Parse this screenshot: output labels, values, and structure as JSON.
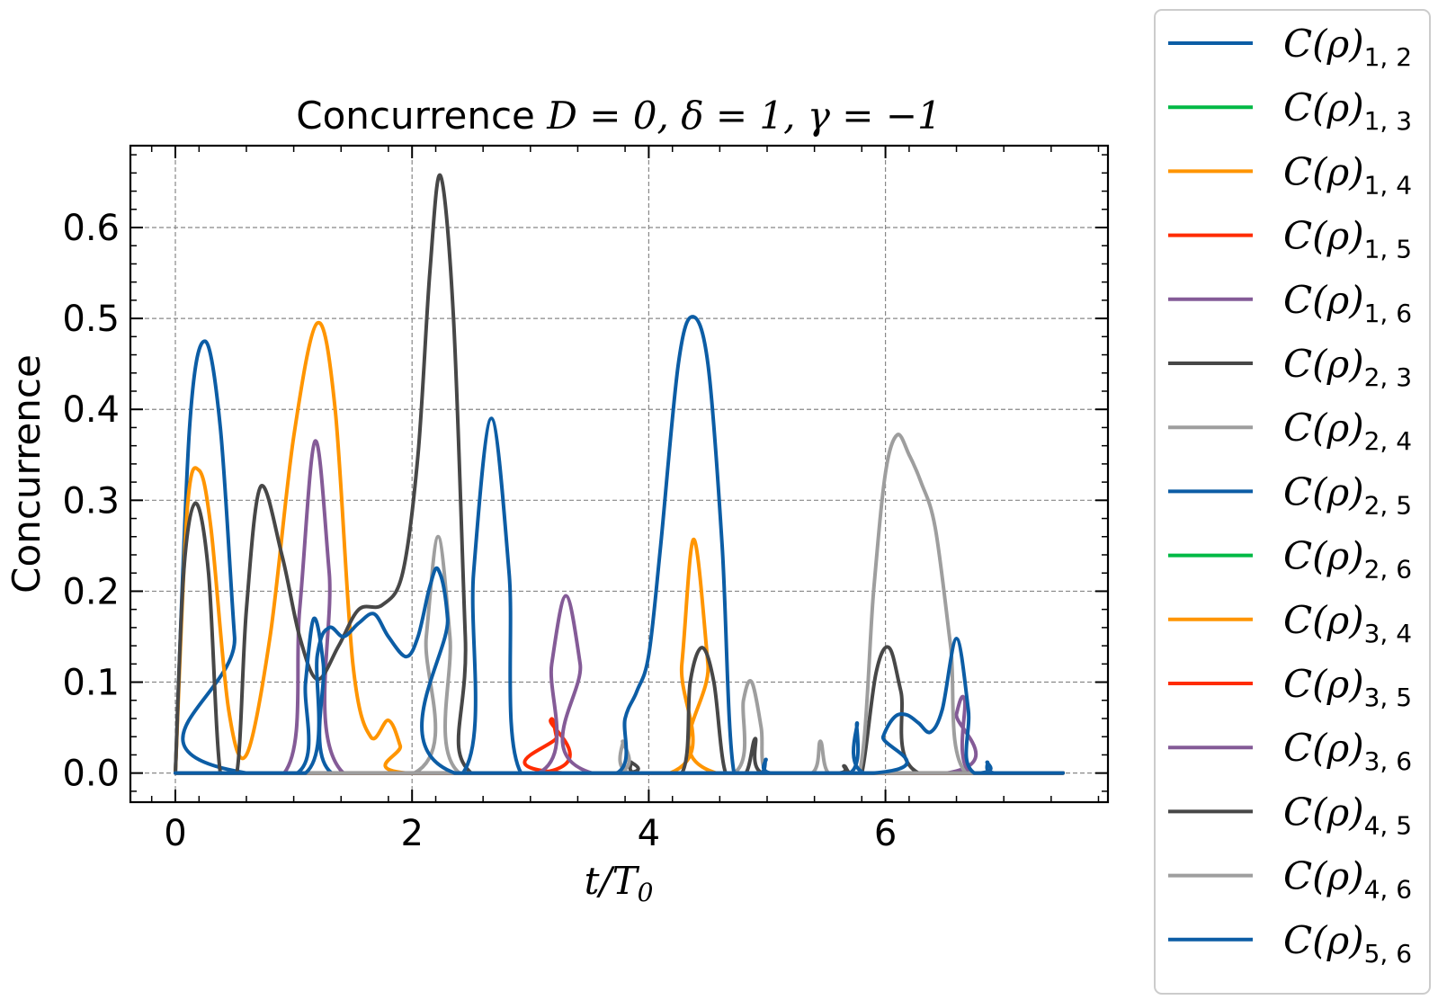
{
  "chart_data": {
    "type": "line",
    "title_prefix": "Concurrence ",
    "title_math": "D = 0, δ = 1, γ = −1",
    "xlabel": "t/T",
    "xlabel_sub": "0",
    "ylabel": "Concurrence",
    "xlim": [
      -0.38,
      7.88
    ],
    "ylim": [
      -0.032,
      0.69
    ],
    "xticks": [
      0,
      2,
      4,
      6
    ],
    "xtick_labels": [
      "0",
      "2",
      "4",
      "6"
    ],
    "yticks": [
      0.0,
      0.1,
      0.2,
      0.3,
      0.4,
      0.5,
      0.6
    ],
    "ytick_labels": [
      "0.0",
      "0.1",
      "0.2",
      "0.3",
      "0.4",
      "0.5",
      "0.6"
    ],
    "grid": true,
    "legend_position": "outside-right",
    "series": [
      {
        "name": "C(ρ)",
        "sub": "1, 2",
        "color": "#0C5DA5",
        "points": [
          [
            0,
            0
          ],
          [
            0.12,
            0.38
          ],
          [
            0.25,
            0.475
          ],
          [
            0.38,
            0.38
          ],
          [
            0.5,
            0.15
          ],
          [
            0.6,
            0
          ],
          [
            7.5,
            0
          ]
        ]
      },
      {
        "name": "C(ρ)",
        "sub": "1, 3",
        "color": "#00B945",
        "points": [
          [
            0,
            0
          ],
          [
            7.5,
            0
          ]
        ]
      },
      {
        "name": "C(ρ)",
        "sub": "1, 4",
        "color": "#FF9500",
        "points": [
          [
            0,
            0
          ],
          [
            0.1,
            0.29
          ],
          [
            0.2,
            0.333
          ],
          [
            0.3,
            0.27
          ],
          [
            0.45,
            0.07
          ],
          [
            0.6,
            0.02
          ],
          [
            0.8,
            0.15
          ],
          [
            1.0,
            0.37
          ],
          [
            1.2,
            0.495
          ],
          [
            1.35,
            0.4
          ],
          [
            1.5,
            0.12
          ],
          [
            1.65,
            0.04
          ],
          [
            1.8,
            0.058
          ],
          [
            1.9,
            0.03
          ],
          [
            1.95,
            0
          ],
          [
            4.18,
            0
          ],
          [
            4.28,
            0.12
          ],
          [
            4.38,
            0.257
          ],
          [
            4.5,
            0.12
          ],
          [
            4.57,
            0
          ],
          [
            7.5,
            0
          ]
        ]
      },
      {
        "name": "C(ρ)",
        "sub": "1, 5",
        "color": "#FF2C00",
        "points": [
          [
            0,
            0
          ],
          [
            3.08,
            0
          ],
          [
            3.17,
            0.058
          ],
          [
            3.22,
            0.04
          ],
          [
            3.28,
            0
          ],
          [
            7.5,
            0
          ]
        ]
      },
      {
        "name": "C(ρ)",
        "sub": "1, 6",
        "color": "#845B97",
        "points": [
          [
            0,
            0
          ],
          [
            0.92,
            0
          ],
          [
            1.05,
            0.18
          ],
          [
            1.18,
            0.365
          ],
          [
            1.3,
            0.22
          ],
          [
            1.42,
            0
          ],
          [
            3.07,
            0
          ],
          [
            3.18,
            0.12
          ],
          [
            3.3,
            0.195
          ],
          [
            3.42,
            0.12
          ],
          [
            3.52,
            0
          ],
          [
            6.52,
            0
          ],
          [
            6.6,
            0.065
          ],
          [
            6.67,
            0.08
          ],
          [
            6.72,
            0
          ],
          [
            7.5,
            0
          ]
        ]
      },
      {
        "name": "C(ρ)",
        "sub": "2, 3",
        "color": "#474747",
        "points": [
          [
            0,
            0
          ],
          [
            0.07,
            0.22
          ],
          [
            0.17,
            0.297
          ],
          [
            0.28,
            0.22
          ],
          [
            0.38,
            0
          ],
          [
            0.52,
            0
          ],
          [
            0.6,
            0.18
          ],
          [
            0.72,
            0.315
          ],
          [
            0.9,
            0.24
          ],
          [
            1.05,
            0.15
          ],
          [
            1.2,
            0.103
          ],
          [
            1.38,
            0.14
          ],
          [
            1.55,
            0.18
          ],
          [
            1.75,
            0.185
          ],
          [
            1.92,
            0.22
          ],
          [
            2.05,
            0.35
          ],
          [
            2.15,
            0.55
          ],
          [
            2.24,
            0.657
          ],
          [
            2.35,
            0.5
          ],
          [
            2.45,
            0.15
          ],
          [
            2.5,
            0
          ],
          [
            3.8,
            0
          ],
          [
            3.85,
            0.012
          ],
          [
            3.88,
            0
          ],
          [
            4.28,
            0
          ],
          [
            4.35,
            0.1
          ],
          [
            4.45,
            0.138
          ],
          [
            4.55,
            0.1
          ],
          [
            4.65,
            0
          ],
          [
            4.82,
            0
          ],
          [
            4.9,
            0.038
          ],
          [
            4.96,
            0
          ],
          [
            5.6,
            0
          ],
          [
            5.65,
            0.008
          ],
          [
            5.7,
            0
          ],
          [
            5.8,
            0
          ],
          [
            5.92,
            0.11
          ],
          [
            6.03,
            0.138
          ],
          [
            6.13,
            0.09
          ],
          [
            6.28,
            0
          ],
          [
            7.5,
            0
          ]
        ]
      },
      {
        "name": "C(ρ)",
        "sub": "2, 4",
        "color": "#9e9e9e",
        "points": [
          [
            0,
            0
          ],
          [
            2.02,
            0
          ],
          [
            2.12,
            0.15
          ],
          [
            2.22,
            0.26
          ],
          [
            2.32,
            0.15
          ],
          [
            2.4,
            0
          ],
          [
            3.72,
            0
          ],
          [
            3.78,
            0.035
          ],
          [
            3.84,
            0
          ],
          [
            4.72,
            0
          ],
          [
            4.8,
            0.08
          ],
          [
            4.87,
            0.1
          ],
          [
            4.95,
            0.05
          ],
          [
            5.0,
            0
          ],
          [
            5.38,
            0
          ],
          [
            5.45,
            0.035
          ],
          [
            5.52,
            0
          ],
          [
            5.78,
            0
          ],
          [
            5.9,
            0.2
          ],
          [
            6.0,
            0.33
          ],
          [
            6.1,
            0.372
          ],
          [
            6.2,
            0.35
          ],
          [
            6.3,
            0.32
          ],
          [
            6.42,
            0.27
          ],
          [
            6.55,
            0.14
          ],
          [
            6.68,
            0
          ],
          [
            7.5,
            0
          ]
        ]
      },
      {
        "name": "C(ρ)",
        "sub": "2, 5",
        "color": "#0C5DA5",
        "points": [
          [
            0,
            0
          ],
          [
            1.03,
            0
          ],
          [
            1.1,
            0.1
          ],
          [
            1.17,
            0.17
          ],
          [
            1.25,
            0.12
          ],
          [
            1.32,
            0
          ],
          [
            2.43,
            0
          ],
          [
            2.52,
            0.22
          ],
          [
            2.67,
            0.39
          ],
          [
            2.82,
            0.22
          ],
          [
            2.92,
            0
          ],
          [
            3.73,
            0
          ],
          [
            3.8,
            0.06
          ],
          [
            3.9,
            0.09
          ],
          [
            4.0,
            0.13
          ],
          [
            4.1,
            0.25
          ],
          [
            4.25,
            0.45
          ],
          [
            4.37,
            0.502
          ],
          [
            4.5,
            0.45
          ],
          [
            4.62,
            0.25
          ],
          [
            4.72,
            0
          ],
          [
            4.95,
            0
          ],
          [
            4.99,
            0.015
          ],
          [
            5.03,
            0
          ],
          [
            5.7,
            0
          ],
          [
            5.76,
            0.055
          ],
          [
            5.82,
            0
          ],
          [
            6.8,
            0
          ],
          [
            6.86,
            0.012
          ],
          [
            6.92,
            0
          ],
          [
            7.5,
            0
          ]
        ]
      },
      {
        "name": "C(ρ)",
        "sub": "2, 6",
        "color": "#00B945",
        "points": [
          [
            0,
            0
          ],
          [
            7.5,
            0
          ]
        ]
      },
      {
        "name": "C(ρ)",
        "sub": "3, 4",
        "color": "#FF9500",
        "points": [
          [
            0,
            0
          ],
          [
            7.5,
            0
          ]
        ]
      },
      {
        "name": "C(ρ)",
        "sub": "3, 5",
        "color": "#FF2C00",
        "points": [
          [
            0,
            0
          ],
          [
            7.5,
            0
          ]
        ]
      },
      {
        "name": "C(ρ)",
        "sub": "3, 6",
        "color": "#845B97",
        "points": [
          [
            0,
            0
          ],
          [
            7.5,
            0
          ]
        ]
      },
      {
        "name": "C(ρ)",
        "sub": "4, 5",
        "color": "#474747",
        "points": [
          [
            0,
            0
          ],
          [
            7.5,
            0
          ]
        ]
      },
      {
        "name": "C(ρ)",
        "sub": "4, 6",
        "color": "#9e9e9e",
        "points": [
          [
            0,
            0
          ],
          [
            7.5,
            0
          ]
        ]
      },
      {
        "name": "C(ρ)",
        "sub": "5, 6",
        "color": "#0C5DA5",
        "points": [
          [
            0,
            0
          ],
          [
            1.1,
            0
          ],
          [
            1.2,
            0.13
          ],
          [
            1.3,
            0.16
          ],
          [
            1.42,
            0.15
          ],
          [
            1.55,
            0.165
          ],
          [
            1.68,
            0.175
          ],
          [
            1.8,
            0.15
          ],
          [
            1.95,
            0.128
          ],
          [
            2.05,
            0.15
          ],
          [
            2.15,
            0.205
          ],
          [
            2.22,
            0.224
          ],
          [
            2.3,
            0.17
          ],
          [
            2.36,
            0
          ],
          [
            5.9,
            0
          ],
          [
            5.98,
            0.04
          ],
          [
            6.08,
            0.062
          ],
          [
            6.18,
            0.064
          ],
          [
            6.28,
            0.055
          ],
          [
            6.38,
            0.045
          ],
          [
            6.48,
            0.07
          ],
          [
            6.6,
            0.148
          ],
          [
            6.7,
            0.07
          ],
          [
            6.75,
            0
          ],
          [
            7.5,
            0
          ]
        ]
      }
    ]
  }
}
